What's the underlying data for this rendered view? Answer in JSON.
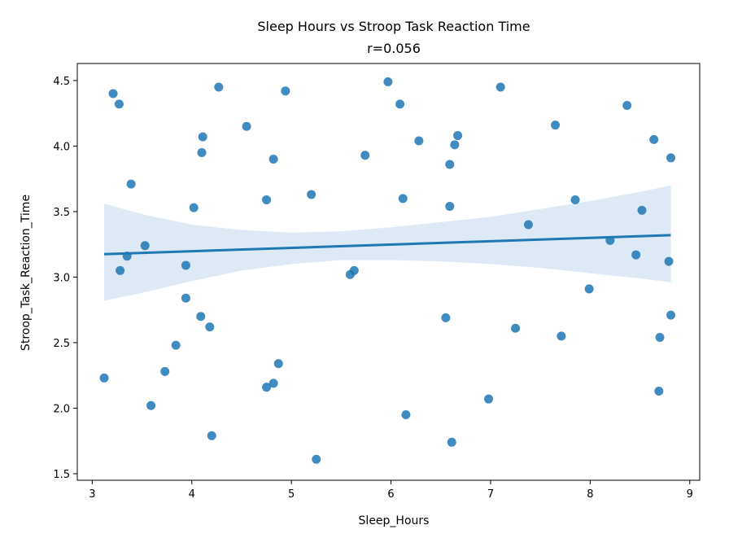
{
  "chart_data": {
    "type": "scatter",
    "title": "Sleep Hours vs Stroop Task Reaction Time",
    "subtitle": "r=0.056",
    "xlabel": "Sleep_Hours",
    "ylabel": "Stroop_Task_Reaction_Time",
    "xlim": [
      2.85,
      9.1
    ],
    "ylim": [
      1.45,
      4.63
    ],
    "xticks": [
      3,
      4,
      5,
      6,
      7,
      8,
      9
    ],
    "xtick_labels": [
      "3",
      "4",
      "5",
      "6",
      "7",
      "8",
      "9"
    ],
    "yticks": [
      1.5,
      2.0,
      2.5,
      3.0,
      3.5,
      4.0,
      4.5
    ],
    "ytick_labels": [
      "1.5",
      "2.0",
      "2.5",
      "3.0",
      "3.5",
      "4.0",
      "4.5"
    ],
    "grid": false,
    "colors": {
      "points": "#1f77b4",
      "line": "#1f77b4",
      "band": "#c6dbef"
    },
    "points": [
      [
        3.12,
        2.23
      ],
      [
        3.21,
        4.4
      ],
      [
        3.27,
        4.32
      ],
      [
        3.28,
        3.05
      ],
      [
        3.35,
        3.16
      ],
      [
        3.39,
        3.71
      ],
      [
        3.53,
        3.24
      ],
      [
        3.59,
        2.02
      ],
      [
        3.73,
        2.28
      ],
      [
        3.84,
        2.48
      ],
      [
        3.94,
        3.09
      ],
      [
        3.94,
        2.84
      ],
      [
        4.02,
        3.53
      ],
      [
        4.09,
        2.7
      ],
      [
        4.1,
        3.95
      ],
      [
        4.11,
        4.07
      ],
      [
        4.18,
        2.62
      ],
      [
        4.2,
        1.79
      ],
      [
        4.27,
        4.45
      ],
      [
        4.55,
        4.15
      ],
      [
        4.75,
        3.59
      ],
      [
        4.75,
        2.16
      ],
      [
        4.82,
        3.9
      ],
      [
        4.82,
        2.19
      ],
      [
        4.87,
        2.34
      ],
      [
        4.94,
        4.42
      ],
      [
        5.2,
        3.63
      ],
      [
        5.25,
        1.61
      ],
      [
        5.59,
        3.02
      ],
      [
        5.63,
        3.05
      ],
      [
        5.74,
        3.93
      ],
      [
        5.97,
        4.49
      ],
      [
        6.09,
        4.32
      ],
      [
        6.12,
        3.6
      ],
      [
        6.15,
        1.95
      ],
      [
        6.28,
        4.04
      ],
      [
        6.55,
        2.69
      ],
      [
        6.59,
        3.86
      ],
      [
        6.59,
        3.54
      ],
      [
        6.61,
        1.74
      ],
      [
        6.64,
        4.01
      ],
      [
        6.67,
        4.08
      ],
      [
        6.98,
        2.07
      ],
      [
        7.1,
        4.45
      ],
      [
        7.25,
        2.61
      ],
      [
        7.38,
        3.4
      ],
      [
        7.65,
        4.16
      ],
      [
        7.71,
        2.55
      ],
      [
        7.85,
        3.59
      ],
      [
        7.99,
        2.91
      ],
      [
        8.2,
        3.28
      ],
      [
        8.37,
        4.31
      ],
      [
        8.46,
        3.17
      ],
      [
        8.52,
        3.51
      ],
      [
        8.64,
        4.05
      ],
      [
        8.69,
        2.13
      ],
      [
        8.7,
        2.54
      ],
      [
        8.79,
        3.12
      ],
      [
        8.81,
        3.91
      ],
      [
        8.81,
        2.71
      ]
    ],
    "regression": {
      "x": [
        3.12,
        8.81
      ],
      "y": [
        3.175,
        3.32
      ]
    },
    "confidence_band": {
      "x": [
        3.12,
        3.5,
        4.0,
        4.5,
        5.0,
        5.5,
        6.0,
        6.5,
        7.0,
        7.5,
        8.0,
        8.5,
        8.81
      ],
      "upper": [
        3.56,
        3.48,
        3.4,
        3.36,
        3.34,
        3.35,
        3.38,
        3.42,
        3.46,
        3.52,
        3.58,
        3.65,
        3.7
      ],
      "lower": [
        2.82,
        2.88,
        2.97,
        3.05,
        3.1,
        3.13,
        3.13,
        3.12,
        3.1,
        3.07,
        3.03,
        2.99,
        2.96
      ]
    }
  }
}
